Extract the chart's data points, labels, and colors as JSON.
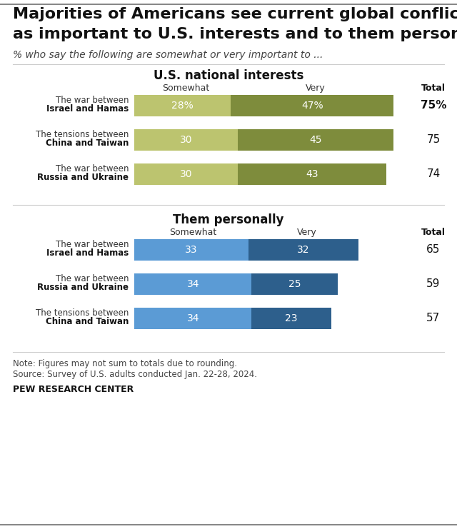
{
  "title_line1": "Majorities of Americans see current global conflicts",
  "title_line2": "as important to U.S. interests and to them personally",
  "subtitle": "% who say the following are somewhat or very important to ...",
  "section1_title": "U.S. national interests",
  "section2_title": "Them personally",
  "col_somewhat": "Somewhat",
  "col_very": "Very",
  "col_total": "Total",
  "section1_bars": [
    {
      "label_line1": "The war between",
      "label_line2": "Israel and Hamas",
      "somewhat": 28,
      "very": 47,
      "total": "75%",
      "total_bold": true
    },
    {
      "label_line1": "The tensions between",
      "label_line2": "China and Taiwan",
      "somewhat": 30,
      "very": 45,
      "total": "75",
      "total_bold": false
    },
    {
      "label_line1": "The war between",
      "label_line2": "Russia and Ukraine",
      "somewhat": 30,
      "very": 43,
      "total": "74",
      "total_bold": false
    }
  ],
  "section2_bars": [
    {
      "label_line1": "The war between",
      "label_line2": "Israel and Hamas",
      "somewhat": 33,
      "very": 32,
      "total": "65",
      "total_bold": false
    },
    {
      "label_line1": "The war between",
      "label_line2": "Russia and Ukraine",
      "somewhat": 34,
      "very": 25,
      "total": "59",
      "total_bold": false
    },
    {
      "label_line1": "The tensions between",
      "label_line2": "China and Taiwan",
      "somewhat": 34,
      "very": 23,
      "total": "57",
      "total_bold": false
    }
  ],
  "color_somewhat_green": "#bcc46f",
  "color_very_green": "#7e8c3c",
  "color_somewhat_blue": "#5b9bd5",
  "color_very_blue": "#2d5f8c",
  "bar_max": 80,
  "note_line1": "Note: Figures may not sum to totals due to rounding.",
  "note_line2": "Source: Survey of U.S. adults conducted Jan. 22-28, 2024.",
  "footer": "PEW RESEARCH CENTER",
  "bg_color": "#ffffff",
  "top_line_color": "#888888",
  "sep_line_color": "#cccccc",
  "bottom_line_color": "#888888"
}
